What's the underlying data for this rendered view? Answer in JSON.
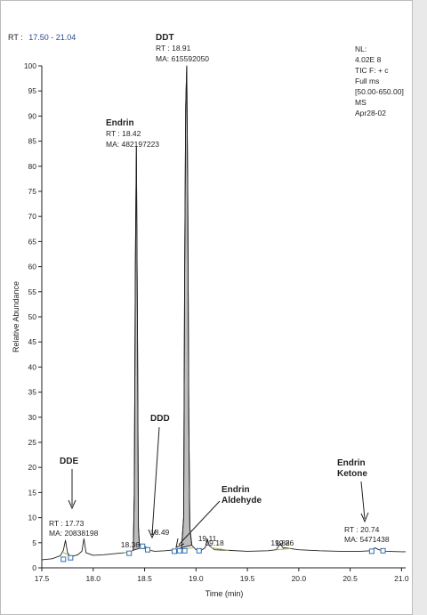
{
  "header": {
    "rt_prefix": "RT :",
    "rt_range": "17.50 - 21.04"
  },
  "info_box": [
    "NL:",
    "4.02E 8",
    "TIC F: + c",
    "Full ms",
    "[50.00-650.00]",
    "MS",
    "Apr28-02"
  ],
  "colors": {
    "trace": "#231f20",
    "peak_fill": "#bdbdbd",
    "baseline_marks": "#9fb44a",
    "markers": "#2f6fb0",
    "rt_range": "#2a4b8d"
  },
  "chart_data": {
    "type": "line",
    "title": "",
    "xlabel": "Time (min)",
    "ylabel": "Relative Abundance",
    "xlim": [
      17.5,
      21.04
    ],
    "ylim": [
      0,
      100
    ],
    "x_ticks": [
      17.5,
      18.0,
      18.5,
      19.0,
      19.5,
      20.0,
      20.5,
      21.0
    ],
    "x_tick_labels": [
      "17.5",
      "18.0",
      "18.5",
      "19.0",
      "19.5",
      "20.0",
      "20.5",
      "21.0"
    ],
    "y_ticks": [
      0,
      5,
      10,
      15,
      20,
      25,
      30,
      35,
      40,
      45,
      50,
      55,
      60,
      65,
      70,
      75,
      80,
      85,
      90,
      95,
      100
    ],
    "grid": false,
    "legend": "none",
    "series": [
      {
        "x": [
          17.5,
          17.6,
          17.68,
          17.71,
          17.73,
          17.75,
          17.78,
          17.85,
          17.89,
          17.91,
          17.93,
          18.0,
          18.1,
          18.2,
          18.3,
          18.36,
          18.39,
          18.4,
          18.41,
          18.42,
          18.43,
          18.44,
          18.45,
          18.47,
          18.49,
          18.51,
          18.55,
          18.6,
          18.7,
          18.8,
          18.86,
          18.88,
          18.89,
          18.9,
          18.91,
          18.92,
          18.93,
          18.94,
          18.96,
          19.0,
          19.05,
          19.09,
          19.11,
          19.13,
          19.18,
          19.3,
          19.5,
          19.7,
          19.78,
          19.82,
          19.85,
          19.86,
          20.0,
          20.2,
          20.4,
          20.6,
          20.7,
          20.74,
          20.78,
          20.85,
          21.0,
          21.04
        ],
        "y": [
          1.6,
          1.8,
          2.4,
          3.5,
          5.5,
          3.0,
          2.2,
          2.6,
          3.3,
          5.8,
          3.0,
          2.5,
          2.6,
          2.8,
          3.0,
          3.2,
          3.5,
          15,
          60,
          84,
          50,
          8,
          4.5,
          4.0,
          3.8,
          4.2,
          3.5,
          3.3,
          3.4,
          3.6,
          4.0,
          10,
          60,
          92,
          100,
          75,
          30,
          8,
          4.5,
          3.6,
          3.5,
          4.0,
          5.8,
          4.4,
          3.6,
          3.5,
          3.3,
          3.4,
          3.6,
          4.8,
          3.9,
          4.0,
          3.6,
          3.4,
          3.3,
          3.3,
          3.4,
          4.0,
          3.6,
          3.3,
          3.2,
          3.2
        ],
        "filled_peaks": [
          [
            18.38,
            18.47
          ],
          [
            18.85,
            18.97
          ]
        ]
      }
    ],
    "peaks": [
      {
        "name": "DDE",
        "rt_label": "RT : 17.73",
        "ma_label": "MA: 20838198",
        "rt": 17.73
      },
      {
        "name": "Endrin",
        "rt_label": "RT : 18.42",
        "ma_label": "MA: 482197223",
        "rt": 18.42
      },
      {
        "name": "DDT",
        "rt_label": "RT : 18.91",
        "ma_label": "MA: 615592050",
        "rt": 18.91
      },
      {
        "name": "DDD",
        "rt_label": "18.49",
        "rt": 18.49
      },
      {
        "name": "Endrin Aldehyde",
        "name_lines": [
          "Endrin",
          "Aldehyde"
        ],
        "rt": 18.79
      },
      {
        "name": "Endrin Ketone",
        "name_lines": [
          "Endrin",
          "Ketone"
        ],
        "rt_label": "RT : 20.74",
        "ma_label": "MA: 5471438",
        "rt": 20.74
      }
    ],
    "retention_time_labels": [
      {
        "x": 18.36,
        "text": "18.36"
      },
      {
        "x": 19.11,
        "text": "19.11"
      },
      {
        "x": 19.18,
        "text": "19.18"
      },
      {
        "x": 19.82,
        "text": "19.82"
      },
      {
        "x": 19.86,
        "text": "19.86"
      }
    ],
    "baseline_segments": [
      [
        17.7,
        17.79
      ],
      [
        18.3,
        18.38
      ],
      [
        18.46,
        18.56
      ],
      [
        18.8,
        18.98
      ],
      [
        19.15,
        19.32
      ],
      [
        19.78,
        19.92
      ]
    ],
    "markers": [
      {
        "x": 17.71,
        "y": 1.7
      },
      {
        "x": 17.78,
        "y": 2.0
      },
      {
        "x": 18.35,
        "y": 2.9
      },
      {
        "x": 18.48,
        "y": 4.3
      },
      {
        "x": 18.53,
        "y": 3.6
      },
      {
        "x": 18.79,
        "y": 3.3
      },
      {
        "x": 18.84,
        "y": 3.4
      },
      {
        "x": 18.89,
        "y": 3.4
      },
      {
        "x": 19.03,
        "y": 3.4
      },
      {
        "x": 20.71,
        "y": 3.3
      },
      {
        "x": 20.82,
        "y": 3.4
      }
    ]
  }
}
